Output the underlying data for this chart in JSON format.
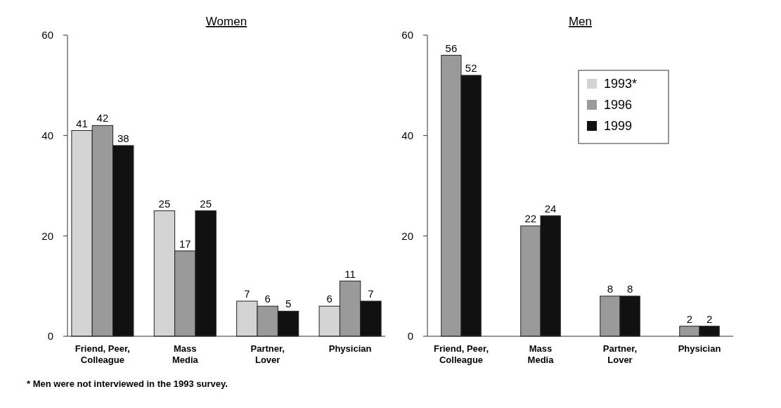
{
  "chart_data": [
    {
      "type": "bar",
      "title": "Women",
      "categories": [
        "Friend, Peer, Colleague",
        "Mass Media",
        "Partner, Lover",
        "Physician"
      ],
      "series": [
        {
          "color": "#d4d4d4",
          "values": [
            41,
            25,
            7,
            6
          ]
        },
        {
          "color": "#9a9a9a",
          "values": [
            42,
            17,
            6,
            11
          ]
        },
        {
          "color": "#111111",
          "values": [
            38,
            25,
            5,
            7
          ]
        }
      ],
      "ylim": [
        0,
        60
      ],
      "yticks": [
        0,
        20,
        40,
        60
      ],
      "grid": false,
      "legend": false,
      "data_labels": true,
      "annotations": [
        "* Men were not interviewed in the 1993 survey."
      ]
    },
    {
      "type": "bar",
      "title": "Men",
      "categories": [
        "Friend, Peer, Colleague",
        "Mass Media",
        "Partner, Lover",
        "Physician"
      ],
      "series": [
        {
          "name": "1993*",
          "color": "#d4d4d4",
          "values": [
            null,
            null,
            null,
            null
          ]
        },
        {
          "name": "1996",
          "color": "#9a9a9a",
          "values": [
            56,
            22,
            8,
            2
          ]
        },
        {
          "name": "1999",
          "color": "#111111",
          "values": [
            52,
            24,
            8,
            2
          ]
        }
      ],
      "ylim": [
        0,
        60
      ],
      "yticks": [
        0,
        20,
        40,
        60
      ],
      "grid": false,
      "legend": "top right",
      "data_labels": true
    }
  ]
}
